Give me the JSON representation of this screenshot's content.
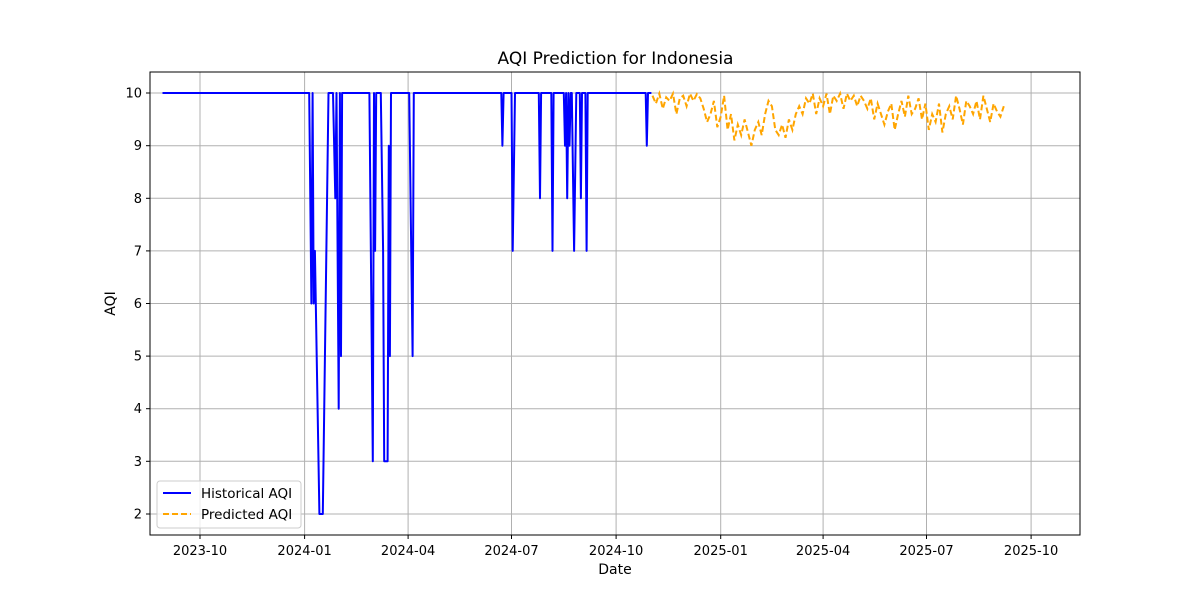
{
  "chart_data": {
    "type": "line",
    "title": "AQI Prediction for Indonesia",
    "xlabel": "Date",
    "ylabel": "AQI",
    "x_ticks": [
      "2023-10",
      "2024-01",
      "2024-04",
      "2024-07",
      "2024-10",
      "2025-01",
      "2025-04",
      "2025-07",
      "2025-10"
    ],
    "y_ticks": [
      2,
      3,
      4,
      5,
      6,
      7,
      8,
      9,
      10
    ],
    "xlim": [
      "2023-08-18",
      "2025-11-13"
    ],
    "ylim": [
      1.6,
      10.4
    ],
    "grid": true,
    "legend_position": "bottom-left",
    "colors": {
      "historical": "#0000ff",
      "predicted": "#ffa500",
      "grid": "#b0b0b0"
    },
    "series": [
      {
        "name": "Historical AQI",
        "style": "solid",
        "points": [
          [
            "2023-08-29",
            10
          ],
          [
            "2024-01-05",
            10
          ],
          [
            "2024-01-07",
            6
          ],
          [
            "2024-01-08",
            10
          ],
          [
            "2024-01-09",
            6
          ],
          [
            "2024-01-10",
            7
          ],
          [
            "2024-01-14",
            2
          ],
          [
            "2024-01-17",
            2
          ],
          [
            "2024-01-22",
            10
          ],
          [
            "2024-01-26",
            10
          ],
          [
            "2024-01-28",
            8
          ],
          [
            "2024-01-29",
            10
          ],
          [
            "2024-01-31",
            4
          ],
          [
            "2024-02-01",
            10
          ],
          [
            "2024-02-02",
            5
          ],
          [
            "2024-02-03",
            10
          ],
          [
            "2024-02-27",
            10
          ],
          [
            "2024-03-01",
            3
          ],
          [
            "2024-03-02",
            10
          ],
          [
            "2024-03-03",
            7
          ],
          [
            "2024-03-04",
            10
          ],
          [
            "2024-03-08",
            10
          ],
          [
            "2024-03-10",
            7
          ],
          [
            "2024-03-11",
            3
          ],
          [
            "2024-03-14",
            3
          ],
          [
            "2024-03-15",
            9
          ],
          [
            "2024-03-16",
            5
          ],
          [
            "2024-03-17",
            10
          ],
          [
            "2024-04-02",
            10
          ],
          [
            "2024-04-05",
            5
          ],
          [
            "2024-04-06",
            10
          ],
          [
            "2024-06-22",
            10
          ],
          [
            "2024-06-23",
            9
          ],
          [
            "2024-06-24",
            10
          ],
          [
            "2024-07-01",
            10
          ],
          [
            "2024-07-02",
            7
          ],
          [
            "2024-07-04",
            10
          ],
          [
            "2024-07-25",
            10
          ],
          [
            "2024-07-26",
            8
          ],
          [
            "2024-07-27",
            10
          ],
          [
            "2024-08-05",
            10
          ],
          [
            "2024-08-06",
            7
          ],
          [
            "2024-08-07",
            10
          ],
          [
            "2024-08-16",
            10
          ],
          [
            "2024-08-17",
            9
          ],
          [
            "2024-08-18",
            10
          ],
          [
            "2024-08-19",
            8
          ],
          [
            "2024-08-20",
            10
          ],
          [
            "2024-08-21",
            9
          ],
          [
            "2024-08-22",
            10
          ],
          [
            "2024-08-23",
            10
          ],
          [
            "2024-08-25",
            7
          ],
          [
            "2024-08-27",
            10
          ],
          [
            "2024-08-30",
            10
          ],
          [
            "2024-08-31",
            8
          ],
          [
            "2024-09-01",
            10
          ],
          [
            "2024-09-04",
            10
          ],
          [
            "2024-09-05",
            7
          ],
          [
            "2024-09-06",
            10
          ],
          [
            "2024-10-27",
            10
          ],
          [
            "2024-10-28",
            9
          ],
          [
            "2024-10-29",
            10
          ],
          [
            "2024-11-01",
            10
          ]
        ]
      },
      {
        "name": "Predicted AQI",
        "style": "dashed",
        "start": "2024-11-02",
        "step_days": 3,
        "values": [
          9.95,
          9.8,
          9.99,
          9.7,
          9.92,
          9.85,
          9.99,
          9.6,
          9.9,
          9.95,
          9.75,
          9.99,
          9.85,
          9.98,
          9.9,
          9.7,
          9.45,
          9.6,
          9.85,
          9.35,
          9.55,
          9.95,
          9.3,
          9.6,
          9.1,
          9.4,
          9.2,
          9.5,
          9.25,
          9.0,
          9.3,
          9.45,
          9.2,
          9.6,
          9.85,
          9.75,
          9.3,
          9.2,
          9.4,
          9.15,
          9.5,
          9.3,
          9.6,
          9.75,
          9.6,
          9.9,
          9.8,
          9.99,
          9.6,
          9.9,
          9.75,
          9.99,
          9.6,
          9.95,
          9.85,
          9.99,
          9.7,
          9.99,
          9.85,
          9.95,
          9.75,
          9.95,
          9.85,
          9.7,
          9.9,
          9.5,
          9.8,
          9.6,
          9.4,
          9.65,
          9.8,
          9.3,
          9.6,
          9.85,
          9.55,
          9.95,
          9.6,
          9.7,
          9.9,
          9.5,
          9.8,
          9.3,
          9.6,
          9.45,
          9.8,
          9.25,
          9.6,
          9.75,
          9.5,
          9.95,
          9.7,
          9.4,
          9.85,
          9.75,
          9.6,
          9.85,
          9.5,
          9.95,
          9.7,
          9.45,
          9.8,
          9.65,
          9.55,
          9.75
        ]
      }
    ]
  }
}
